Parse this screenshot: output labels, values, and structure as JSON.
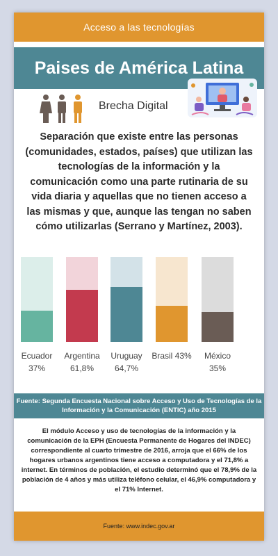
{
  "header": {
    "category": "Acceso a las tecnologías",
    "title": "Paises de América Latina"
  },
  "section": {
    "subtitle": "Brecha Digital"
  },
  "definition": "Separación que existe entre las personas (comunidades, estados, países) que utilizan las tecnologías de la información y la comunicación como una parte rutinaria de su vida diaria y aquellas que no tienen acceso a las mismas y que, aunque las tengan no saben cómo utilizarlas (Serrano y Martínez, 2003).",
  "chart_data": {
    "type": "bar",
    "categories": [
      "Ecuador",
      "Argentina",
      "Uruguay",
      "Brasil",
      "México"
    ],
    "value_labels": [
      "37%",
      "61,8%",
      "64,7%",
      "43%",
      "35%"
    ],
    "values": [
      37,
      61.8,
      64.7,
      43,
      35
    ],
    "ylim": [
      0,
      100
    ],
    "colors": [
      "#66b4a0",
      "#c33a4e",
      "#4e8794",
      "#e0962f",
      "#6a5c55"
    ],
    "track_colors": [
      "#dceeea",
      "#f2d4da",
      "#d3e2e8",
      "#f7e6cf",
      "#dcdcdc"
    ]
  },
  "source": "Fuente: Segunda Encuesta Nacional sobre Acceso y Uso de Tecnologías de la Información y la Comunicación (ENTIC) año 2015",
  "body": "El módulo Acceso y uso de tecnologías de la información y la comunicación de la EPH (Encuesta Permanente de Hogares del INDEC) correspondiente al cuarto trimestre de 2016, arroja que el 66% de los hogares urbanos argentinos tiene acceso a computadora y el 71,8% a internet. En términos de población, el estudio determinó que el 78,9% de la población de 4 años y más utiliza teléfono celular, el 46,9% computadora y el 71% Internet.",
  "footer": "Fuente: www.indec.gov.ar",
  "icons": {
    "people": "people-icon",
    "illustration": "video-call-illustration"
  }
}
